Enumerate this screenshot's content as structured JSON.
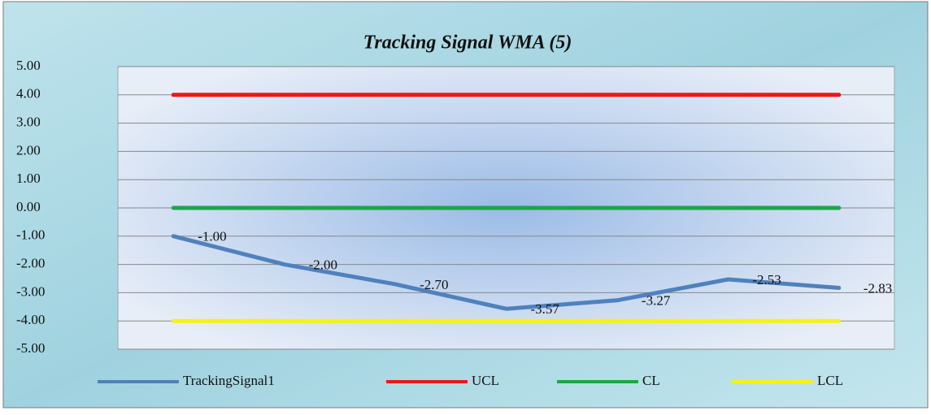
{
  "chart_data": {
    "type": "line",
    "title": "Tracking Signal WMA (5)",
    "categories": [
      null,
      null,
      null,
      null,
      null,
      null,
      null
    ],
    "series": [
      {
        "name": "TrackingSignal1",
        "color": "#4f81bd",
        "values": [
          -1,
          -2,
          -2.7,
          -3.57,
          -3.27,
          -2.53,
          -2.83
        ],
        "value_labels": [
          "-1.00",
          "-2.00",
          "-2.70",
          "-3.57",
          "-3.27",
          "-2.53",
          "-2.83"
        ]
      },
      {
        "name": "UCL",
        "color": "#e8191b",
        "values": [
          4,
          4,
          4,
          4,
          4,
          4,
          4
        ]
      },
      {
        "name": "CL",
        "color": "#1ea54a",
        "values": [
          0,
          0,
          0,
          0,
          0,
          0,
          0
        ]
      },
      {
        "name": "LCL",
        "color": "#f5f21a",
        "values": [
          -4,
          -4,
          -4,
          -4,
          -4,
          -4,
          -4
        ]
      }
    ],
    "ylim": [
      -5,
      5
    ],
    "yticks": [
      {
        "value": -5,
        "label": "-5.00"
      },
      {
        "value": -4,
        "label": "-4.00"
      },
      {
        "value": -3,
        "label": "-3.00"
      },
      {
        "value": -2,
        "label": "-2.00"
      },
      {
        "value": -1,
        "label": "-1.00"
      },
      {
        "value": 0,
        "label": "0.00"
      },
      {
        "value": 1,
        "label": "1.00"
      },
      {
        "value": 2,
        "label": "2.00"
      },
      {
        "value": 3,
        "label": "3.00"
      },
      {
        "value": 4,
        "label": "4.00"
      },
      {
        "value": 5,
        "label": "5.00"
      }
    ],
    "grid": true,
    "legend": "bottom"
  }
}
